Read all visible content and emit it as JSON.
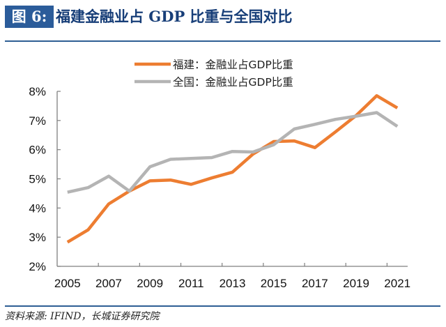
{
  "header": {
    "figure_label": "图 6:",
    "title": "福建金融业占 GDP 比重与全国对比"
  },
  "footer": {
    "source": "资料来源: IFIND，长城证券研究院"
  },
  "chart_data": {
    "type": "line",
    "title": "福建金融业占 GDP 比重与全国对比",
    "xlabel": "",
    "ylabel": "",
    "x": [
      2005,
      2006,
      2007,
      2008,
      2009,
      2010,
      2011,
      2012,
      2013,
      2014,
      2015,
      2016,
      2017,
      2018,
      2019,
      2020,
      2021
    ],
    "x_tick_labels": [
      "2005",
      "2007",
      "2009",
      "2011",
      "2013",
      "2015",
      "2017",
      "2019",
      "2021"
    ],
    "y_tick_labels": [
      "2%",
      "3%",
      "4%",
      "5%",
      "6%",
      "7%",
      "8%"
    ],
    "ylim": [
      2,
      8
    ],
    "y_unit": "%",
    "grid": false,
    "legend_position": "top-center",
    "series": [
      {
        "name": "福建：金融业占GDP比重",
        "color": "#ed7d31",
        "values": [
          2.83,
          3.25,
          4.14,
          4.58,
          4.93,
          4.96,
          4.81,
          5.03,
          5.23,
          5.85,
          6.28,
          6.3,
          6.07,
          6.61,
          7.17,
          7.85,
          7.43
        ]
      },
      {
        "name": "全国：金融业占GDP比重",
        "color": "#b4b4b4",
        "values": [
          4.54,
          4.7,
          5.09,
          4.58,
          5.41,
          5.67,
          5.7,
          5.73,
          5.94,
          5.92,
          6.17,
          6.71,
          6.87,
          7.04,
          7.15,
          7.27,
          6.8
        ]
      }
    ]
  }
}
